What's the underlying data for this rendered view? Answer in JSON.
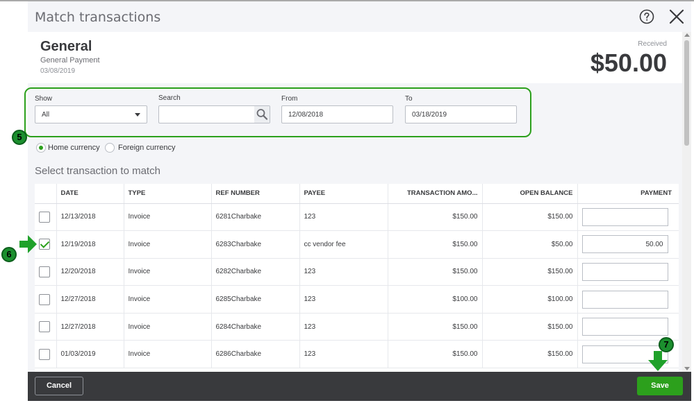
{
  "dialog": {
    "title": "Match transactions"
  },
  "summary": {
    "name": "General",
    "subtitle": "General Payment",
    "date": "03/08/2019",
    "received_label": "Received",
    "received_amount": "$50.00"
  },
  "filters": {
    "show_label": "Show",
    "show_value": "All",
    "search_label": "Search",
    "search_value": "",
    "from_label": "From",
    "from_value": "12/08/2018",
    "to_label": "To",
    "to_value": "03/18/2019"
  },
  "currency": {
    "home_label": "Home currency",
    "foreign_label": "Foreign currency",
    "selected": "home"
  },
  "table": {
    "title": "Select transaction to match",
    "headers": [
      "DATE",
      "TYPE",
      "REF NUMBER",
      "PAYEE",
      "TRANSACTION AMO...",
      "OPEN BALANCE",
      "PAYMENT"
    ],
    "rows": [
      {
        "checked": false,
        "date": "12/13/2018",
        "type": "Invoice",
        "ref": "6281Charbake",
        "payee": "123",
        "amount": "$150.00",
        "open_balance": "$150.00",
        "payment": ""
      },
      {
        "checked": true,
        "date": "12/19/2018",
        "type": "Invoice",
        "ref": "6283Charbake",
        "payee": "cc vendor fee",
        "amount": "$150.00",
        "open_balance": "$50.00",
        "payment": "50.00"
      },
      {
        "checked": false,
        "date": "12/20/2018",
        "type": "Invoice",
        "ref": "6282Charbake",
        "payee": "123",
        "amount": "$150.00",
        "open_balance": "$150.00",
        "payment": ""
      },
      {
        "checked": false,
        "date": "12/27/2018",
        "type": "Invoice",
        "ref": "6285Charbake",
        "payee": "123",
        "amount": "$100.00",
        "open_balance": "$100.00",
        "payment": ""
      },
      {
        "checked": false,
        "date": "12/27/2018",
        "type": "Invoice",
        "ref": "6284Charbake",
        "payee": "123",
        "amount": "$150.00",
        "open_balance": "$150.00",
        "payment": ""
      },
      {
        "checked": false,
        "date": "01/03/2019",
        "type": "Invoice",
        "ref": "6286Charbake",
        "payee": "123",
        "amount": "$150.00",
        "open_balance": "$150.00",
        "payment": ""
      }
    ]
  },
  "footer": {
    "cancel_label": "Cancel",
    "save_label": "Save"
  },
  "annotations": {
    "step5": "5",
    "step6": "6",
    "step7": "7"
  },
  "colors": {
    "accent": "#2ca01c",
    "footer_bg": "#393a3d",
    "step_badge": "#1b8f2e"
  },
  "icons": {
    "help": "help-circle-icon",
    "close": "close-icon",
    "search": "search-icon",
    "dropdown": "chevron-down-icon",
    "arrow": "arrow-icon"
  }
}
